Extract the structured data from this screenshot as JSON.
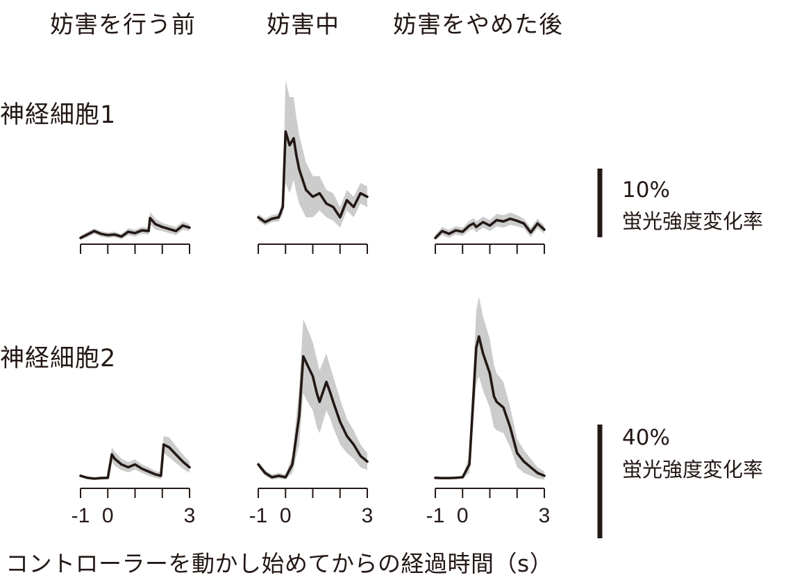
{
  "columns": [
    "妨害を行う前",
    "妨害中",
    "妨害をやめた後"
  ],
  "rows": [
    "神経細胞1",
    "神経細胞2"
  ],
  "scale_bars": [
    {
      "value": 10,
      "pct_label": "10%",
      "label": "蛍光強度変化率"
    },
    {
      "value": 40,
      "pct_label": "40%",
      "label": "蛍光強度変化率"
    }
  ],
  "x_axis": {
    "title": "コントローラーを動かし始めてからの経過時間（s）",
    "tick_labels": [
      "-1",
      "0",
      "3"
    ],
    "ticks": [
      -1,
      0,
      1,
      2,
      3
    ],
    "range": [
      -1,
      3
    ]
  },
  "colors": {
    "line": "#231815",
    "band": "#cccccc"
  },
  "chart_data": {
    "type": "line",
    "xlabel": "コントローラーを動かし始めてからの経過時間（s）",
    "xlim": [
      -1,
      3
    ],
    "units": "蛍光強度変化率 (%)",
    "panels": [
      {
        "row": "神経細胞1",
        "column": "妨害を行う前",
        "scale": 10,
        "x": [
          -1,
          -0.75,
          -0.5,
          -0.25,
          0,
          0.25,
          0.5,
          0.75,
          1,
          1.25,
          1.5,
          1.55,
          1.75,
          2,
          2.25,
          2.5,
          2.75,
          3
        ],
        "y": [
          0,
          0.5,
          1,
          0.6,
          0.4,
          0.5,
          0.2,
          0.9,
          0.7,
          1.1,
          1,
          2.9,
          2,
          1.6,
          1.3,
          1,
          1.8,
          1.5
        ],
        "spread": [
          0.3,
          0.4,
          0.4,
          0.4,
          0.4,
          0.4,
          0.4,
          0.5,
          0.5,
          0.5,
          0.5,
          0.9,
          0.8,
          0.6,
          0.6,
          0.6,
          0.6,
          0.5
        ]
      },
      {
        "row": "神経細胞1",
        "column": "妨害中",
        "scale": 10,
        "x": [
          -1,
          -0.75,
          -0.5,
          -0.25,
          -0.1,
          0,
          0.15,
          0.3,
          0.4,
          0.5,
          0.75,
          1,
          1.25,
          1.5,
          1.75,
          2,
          2.25,
          2.5,
          2.75,
          3
        ],
        "y": [
          3,
          2.3,
          2.8,
          3,
          4.5,
          15.5,
          13.5,
          14.5,
          12,
          10,
          7,
          6,
          6.5,
          5,
          4.5,
          3,
          5.5,
          4.5,
          6.5,
          6
        ],
        "spread": [
          0.5,
          0.5,
          0.5,
          0.6,
          1,
          7.5,
          7,
          6,
          5.5,
          5,
          4,
          3,
          2.5,
          2,
          2,
          1.5,
          1.5,
          1.5,
          1.5,
          1.5
        ]
      },
      {
        "row": "神経細胞1",
        "column": "妨害をやめた後",
        "scale": 10,
        "x": [
          -1,
          -0.75,
          -0.5,
          -0.25,
          0,
          0.25,
          0.4,
          0.5,
          0.75,
          1,
          1.25,
          1.5,
          1.75,
          2,
          2.25,
          2.5,
          2.75,
          3
        ],
        "y": [
          0,
          1,
          0.6,
          1.1,
          0.9,
          1.8,
          2.1,
          1.6,
          2.3,
          1.8,
          2.6,
          2.4,
          2.8,
          2.5,
          2.1,
          0.8,
          2.1,
          1.2
        ],
        "spread": [
          0.4,
          0.6,
          0.6,
          0.6,
          0.6,
          0.7,
          0.8,
          0.8,
          0.8,
          0.8,
          0.9,
          0.9,
          0.9,
          0.8,
          0.7,
          0.7,
          0.7,
          0.6
        ]
      },
      {
        "row": "神経細胞2",
        "column": "妨害を行う前",
        "scale": 40,
        "x": [
          -1,
          -0.75,
          -0.5,
          -0.25,
          0,
          0.15,
          0.25,
          0.5,
          0.75,
          1,
          1.25,
          1.5,
          1.75,
          1.95,
          2.05,
          2.25,
          2.5,
          2.75,
          3
        ],
        "y": [
          1,
          0.3,
          0,
          0.2,
          0.3,
          8.5,
          7,
          5,
          4,
          5,
          3.5,
          2.5,
          1.5,
          1,
          12,
          11,
          8.5,
          6,
          4
        ],
        "spread": [
          0.5,
          0.5,
          0.5,
          0.5,
          0.5,
          2.5,
          2.5,
          2,
          1.8,
          1.8,
          1.5,
          1.5,
          1.2,
          1.2,
          3,
          3.5,
          3,
          2.5,
          2
        ]
      },
      {
        "row": "神経細胞2",
        "column": "妨害中",
        "scale": 40,
        "x": [
          -1,
          -0.75,
          -0.5,
          -0.25,
          0,
          0.25,
          0.5,
          0.65,
          0.75,
          1,
          1.15,
          1.25,
          1.5,
          1.65,
          1.75,
          2,
          2.25,
          2.5,
          2.75,
          3
        ],
        "y": [
          5,
          2,
          0.5,
          1,
          0.5,
          5,
          22,
          43,
          41,
          36,
          30,
          27,
          34,
          30,
          27,
          20,
          15,
          12,
          8,
          6
        ],
        "spread": [
          1,
          1,
          1,
          1,
          1,
          3,
          10,
          13,
          13,
          12,
          12,
          11,
          10,
          9,
          9,
          8,
          6,
          5,
          4,
          3
        ]
      },
      {
        "row": "神経細胞2",
        "column": "妨害をやめた後",
        "scale": 40,
        "x": [
          -1,
          -0.75,
          -0.5,
          -0.25,
          0,
          0.25,
          0.5,
          0.6,
          0.75,
          1,
          1.15,
          1.25,
          1.5,
          1.75,
          2,
          2.25,
          2.5,
          2.75,
          3
        ],
        "y": [
          0.3,
          0.2,
          0.2,
          0.3,
          0.5,
          5,
          46,
          50,
          44,
          37,
          29,
          27,
          25,
          18,
          9,
          6,
          4,
          2,
          1
        ],
        "spread": [
          0.3,
          0.3,
          0.3,
          0.3,
          0.5,
          3,
          13,
          14,
          13,
          12,
          11,
          10,
          9,
          7,
          5,
          4,
          3,
          2,
          1.5
        ]
      }
    ]
  }
}
